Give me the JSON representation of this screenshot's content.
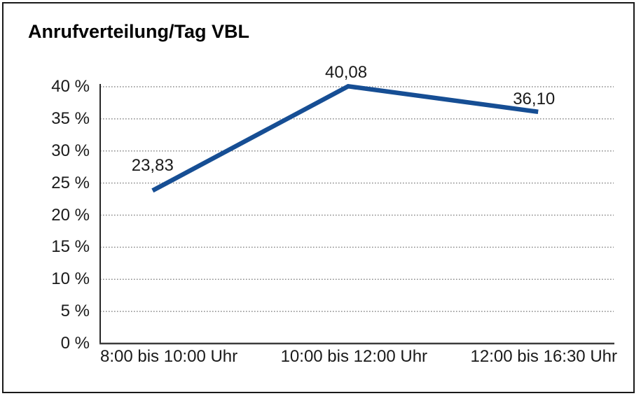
{
  "chart_data": {
    "type": "line",
    "title": "Anrufverteilung/Tag VBL",
    "categories": [
      "8:00 bis 10:00 Uhr",
      "10:00 bis 12:00 Uhr",
      "12:00 bis 16:30 Uhr"
    ],
    "values": [
      23.83,
      40.08,
      36.1
    ],
    "point_labels": [
      "23,83",
      "40,08",
      "36,10"
    ],
    "ytick_labels": [
      "0 %",
      "5 %",
      "10 %",
      "15 %",
      "20 %",
      "25 %",
      "30 %",
      "35 %",
      "40 %"
    ],
    "ytick_values": [
      0,
      5,
      10,
      15,
      20,
      25,
      30,
      35,
      40
    ],
    "ylim": [
      0,
      40
    ],
    "xlabel": "",
    "ylabel": "",
    "legend": "none",
    "grid": "dotted-horizontal",
    "line_color": "#164e94",
    "text_color": "#1a1a1a",
    "grid_color": "#8c8c8c",
    "y_axis_color": "#262626",
    "x_axis_color": "#3c3c3c",
    "border_color": "#1a1a1a",
    "background_color": "#ffffff"
  }
}
